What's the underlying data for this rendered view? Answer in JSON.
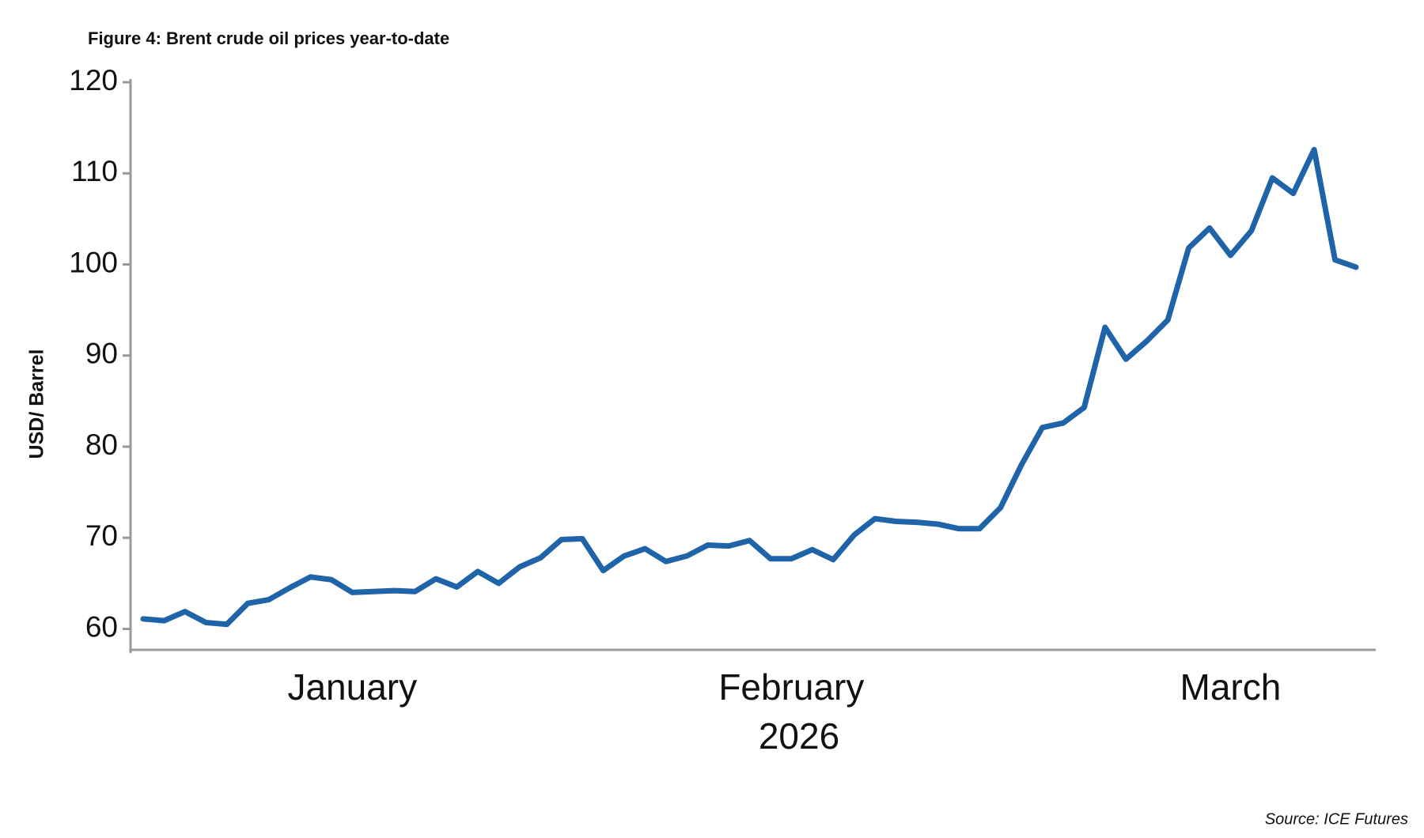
{
  "chart_data": {
    "type": "line",
    "title": "Figure 4: Brent crude oil prices year-to-date",
    "ylabel": "USD/ Barrel",
    "xlabel": "2026",
    "source": "Source:  ICE Futures",
    "categories": [
      null,
      null,
      null,
      null,
      null,
      null,
      null,
      null,
      null,
      null,
      "January",
      null,
      null,
      null,
      null,
      null,
      null,
      null,
      null,
      null,
      null,
      null,
      null,
      null,
      null,
      null,
      null,
      null,
      null,
      null,
      null,
      "February",
      null,
      null,
      null,
      null,
      null,
      null,
      null,
      null,
      null,
      null,
      null,
      null,
      null,
      null,
      null,
      null,
      null,
      null,
      null,
      null,
      "March",
      null,
      null,
      null,
      null,
      null,
      null
    ],
    "series": [
      {
        "name": "Brent",
        "color": "#1f63a8",
        "values": [
          61.1,
          60.9,
          61.9,
          60.7,
          60.5,
          62.8,
          63.2,
          64.5,
          65.7,
          65.4,
          64.0,
          64.1,
          64.2,
          64.1,
          65.5,
          64.6,
          66.3,
          65.0,
          66.8,
          67.8,
          69.8,
          69.9,
          66.4,
          68.0,
          68.8,
          67.4,
          68.0,
          69.2,
          69.1,
          69.7,
          67.7,
          67.7,
          68.7,
          67.6,
          70.3,
          72.1,
          71.8,
          71.7,
          71.5,
          71.0,
          71.0,
          73.3,
          78.0,
          82.1,
          82.6,
          84.3,
          93.1,
          89.6,
          91.6,
          93.9,
          101.8,
          104.0,
          101.0,
          103.7,
          109.5,
          107.8,
          112.6,
          100.5,
          99.7
        ]
      }
    ],
    "ylim": [
      57.7,
      120
    ],
    "yticks": [
      60,
      70,
      80,
      90,
      100,
      110,
      120
    ],
    "grid": false
  }
}
